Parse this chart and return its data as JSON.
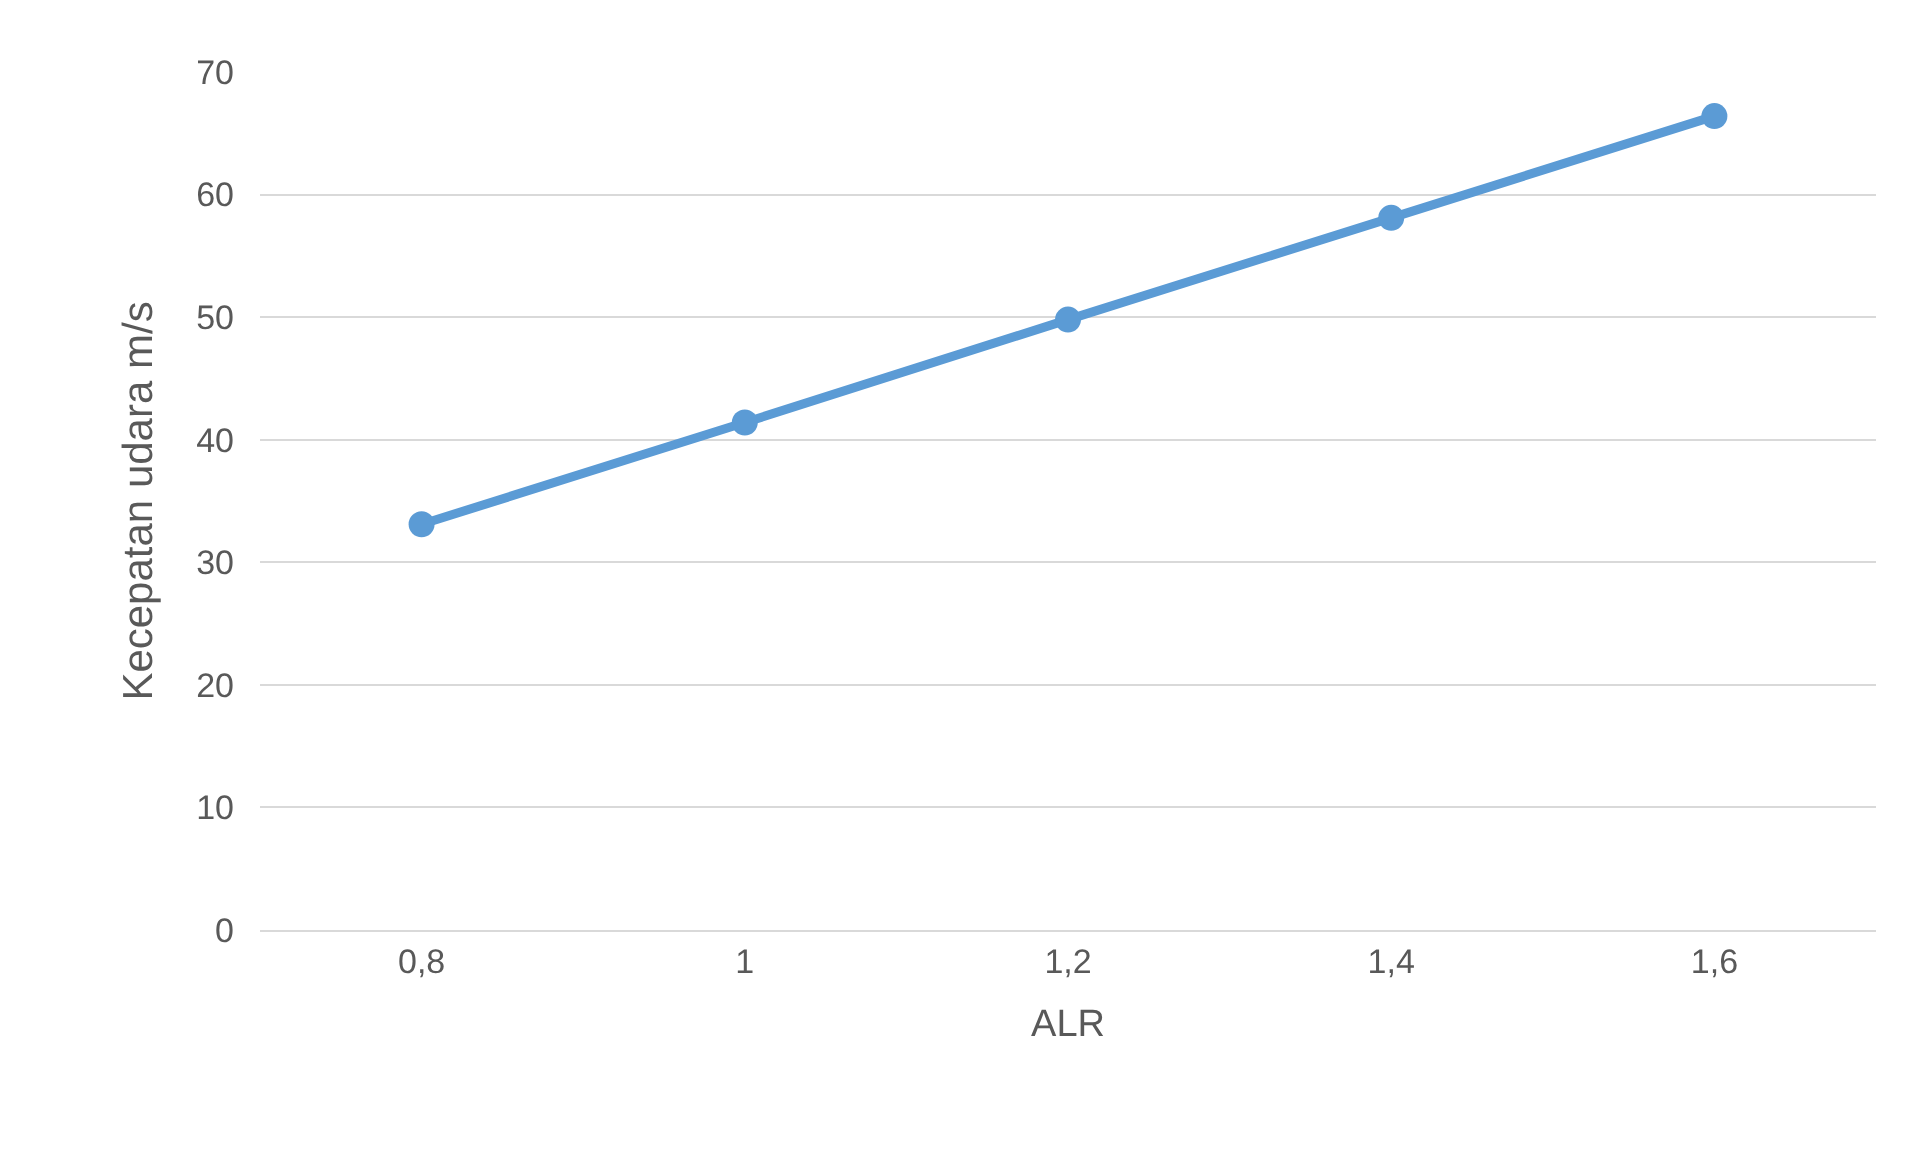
{
  "chart_data": {
    "type": "line",
    "xlabel": "ALR",
    "ylabel": "Kecepatan udara m/s",
    "categories": [
      "0,8",
      "1",
      "1,2",
      "1,4",
      "1,6"
    ],
    "series": [
      {
        "color": "#5b9bd5",
        "values": [
          33.1,
          41.4,
          49.8,
          58.1,
          66.4
        ]
      }
    ],
    "ylim": [
      0,
      70
    ],
    "yticks": [
      0,
      10,
      20,
      30,
      40,
      50,
      60,
      70
    ],
    "grid": "y",
    "marker": "circle",
    "legend": false
  }
}
